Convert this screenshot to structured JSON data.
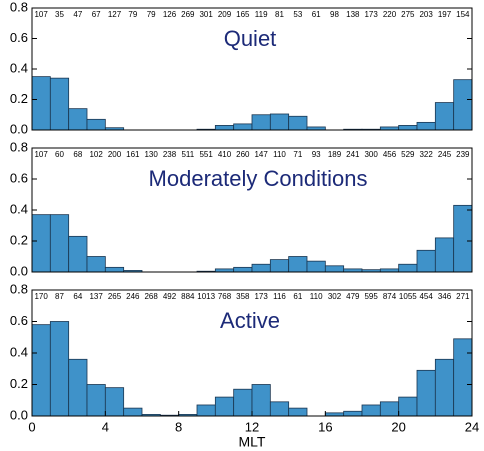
{
  "chart_data": [
    {
      "type": "histogram",
      "title": "Quiet",
      "color": "#3f92c9",
      "bins": [
        0,
        1,
        2,
        3,
        4,
        5,
        6,
        7,
        8,
        9,
        10,
        11,
        12,
        13,
        14,
        15,
        16,
        17,
        18,
        19,
        20,
        21,
        22,
        23,
        24
      ],
      "values": [
        0.35,
        0.34,
        0.14,
        0.07,
        0.015,
        0,
        0,
        0,
        0,
        0.005,
        0.03,
        0.04,
        0.1,
        0.105,
        0.09,
        0.02,
        0,
        0.005,
        0.005,
        0.02,
        0.03,
        0.05,
        0.18,
        0.33
      ],
      "sample_counts": [
        107,
        35,
        47,
        67,
        127,
        79,
        79,
        126,
        269,
        301,
        209,
        165,
        119,
        81,
        53,
        61,
        98,
        138,
        173,
        220,
        275,
        203,
        197,
        154
      ],
      "xlim": [
        0,
        24
      ],
      "ylim": [
        0,
        0.8
      ],
      "yticks": [
        {
          "value": 0,
          "label": "0.0"
        },
        0.2,
        0.4,
        0.6,
        0.8
      ]
    },
    {
      "type": "histogram",
      "title": "Moderately Conditions",
      "color": "#3f92c9",
      "bins": [
        0,
        1,
        2,
        3,
        4,
        5,
        6,
        7,
        8,
        9,
        10,
        11,
        12,
        13,
        14,
        15,
        16,
        17,
        18,
        19,
        20,
        21,
        22,
        23,
        24
      ],
      "values": [
        0.37,
        0.37,
        0.23,
        0.1,
        0.03,
        0.01,
        0,
        0,
        0,
        0.005,
        0.02,
        0.03,
        0.05,
        0.08,
        0.1,
        0.07,
        0.04,
        0.02,
        0.015,
        0.02,
        0.05,
        0.14,
        0.22,
        0.43
      ],
      "sample_counts": [
        107,
        60,
        68,
        102,
        200,
        161,
        130,
        238,
        511,
        551,
        410,
        260,
        147,
        110,
        71,
        93,
        189,
        241,
        300,
        456,
        529,
        322,
        245,
        239
      ],
      "xlim": [
        0,
        24
      ],
      "ylim": [
        0,
        0.8
      ],
      "yticks": [
        {
          "value": 0,
          "label": "0.0"
        },
        0.2,
        0.4,
        0.6,
        0.8
      ]
    },
    {
      "type": "histogram",
      "title": "Active",
      "color": "#3f92c9",
      "bins": [
        0,
        1,
        2,
        3,
        4,
        5,
        6,
        7,
        8,
        9,
        10,
        11,
        12,
        13,
        14,
        15,
        16,
        17,
        18,
        19,
        20,
        21,
        22,
        23,
        24
      ],
      "values": [
        0.58,
        0.6,
        0.36,
        0.2,
        0.18,
        0.05,
        0.01,
        0.005,
        0.01,
        0.07,
        0.12,
        0.17,
        0.2,
        0.09,
        0.05,
        0,
        0.02,
        0.03,
        0.07,
        0.09,
        0.12,
        0.29,
        0.36,
        0.49
      ],
      "sample_counts": [
        170,
        87,
        64,
        137,
        265,
        246,
        268,
        492,
        884,
        1013,
        768,
        358,
        173,
        116,
        61,
        110,
        302,
        479,
        595,
        874,
        1055,
        454,
        346,
        271
      ],
      "xlim": [
        0,
        24
      ],
      "ylim": [
        0,
        0.8
      ],
      "yticks": [
        {
          "value": 0,
          "label": "0.0"
        },
        0.2,
        0.4,
        0.6,
        0.8
      ],
      "xticks": [
        0,
        4,
        8,
        12,
        16,
        20,
        24
      ],
      "xlabel": "MLT"
    }
  ]
}
